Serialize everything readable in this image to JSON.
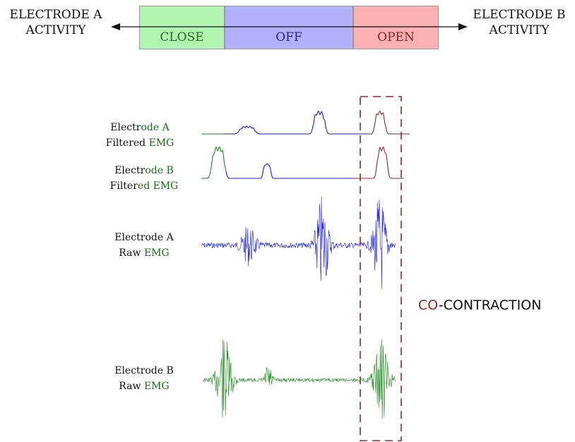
{
  "header": {
    "left_line1": "ELECTRODE A",
    "left_line2": "ACTIVITY",
    "right_line1": "ELECTRODE B",
    "right_line2": "ACTIVITY",
    "zones": [
      {
        "label": "CLOSE",
        "fill": "#b1f5b1",
        "text_color": "#206e20"
      },
      {
        "label": "OFF",
        "fill": "#b1b1fb",
        "text_color": "#23237a"
      },
      {
        "label": "OPEN",
        "fill": "#f9b1b1",
        "text_color": "#8a2222"
      }
    ]
  },
  "traces": [
    {
      "line1_a": "Electr",
      "line1_b": "ode A",
      "line2_a": "Filtered ",
      "line2_b": "EMG"
    },
    {
      "line1_a": "Electr",
      "line1_b": "ode B",
      "line2_a": "Filter",
      "line2_b": "ed EMG"
    },
    {
      "line1_a": "Electrode A",
      "line1_b": "",
      "line2_a": "Raw ",
      "line2_b": "EMG"
    },
    {
      "line1_a": "Electrode B",
      "line1_b": "",
      "line2_a": "Raw ",
      "line2_b": "EMG"
    }
  ],
  "annotation": {
    "part1": "CO",
    "part2": "-CONTRACTION"
  },
  "colors": {
    "blue_signal": "#1a1ae6",
    "green_signal": "#1a8a1a",
    "dark_red": "#8e2a2a",
    "dashed_box": "#8e2a2a"
  }
}
